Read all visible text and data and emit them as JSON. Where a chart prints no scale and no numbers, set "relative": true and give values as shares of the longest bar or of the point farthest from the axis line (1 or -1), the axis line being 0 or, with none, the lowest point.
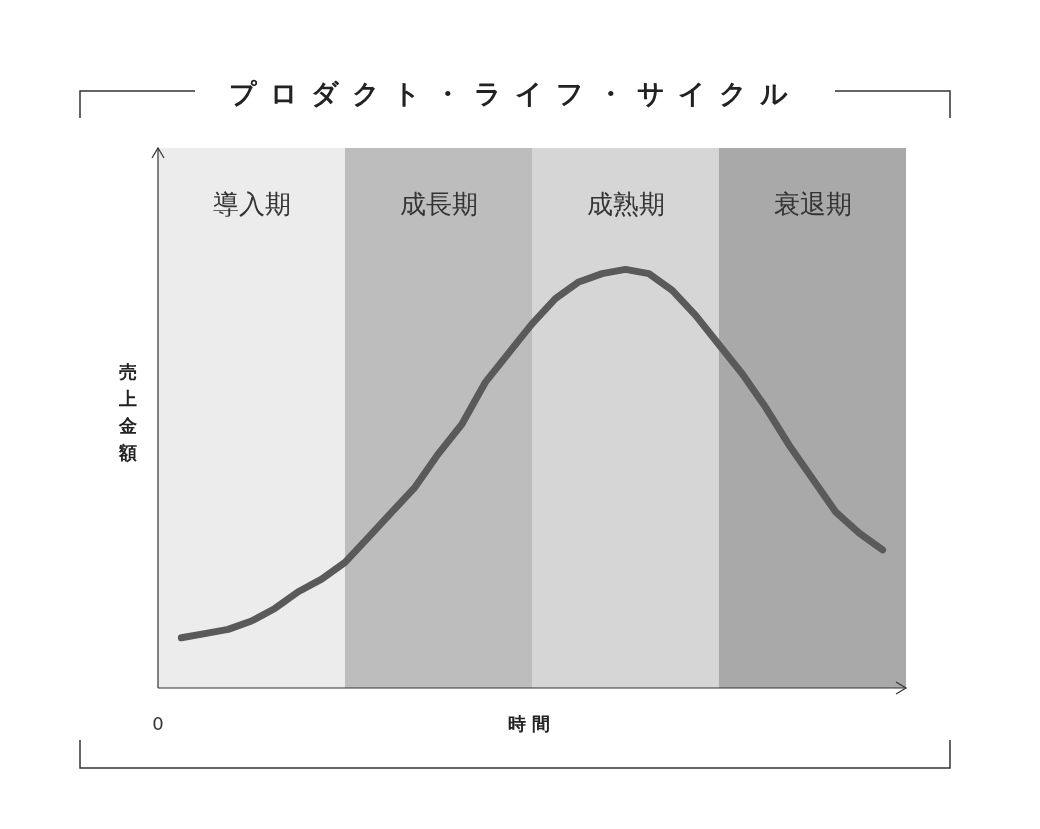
{
  "chart_data": {
    "type": "line",
    "title": "プロダクト・ライフ・サイクル",
    "xlabel": "時間",
    "ylabel": "売上金額",
    "relative": true,
    "annotations": [
      "導入期",
      "成長期",
      "成熟期",
      "衰退期",
      "0"
    ],
    "categories": [
      null,
      null,
      null,
      null,
      null,
      null,
      null,
      null,
      null,
      null,
      null,
      null,
      null,
      null,
      null,
      null,
      null,
      null,
      null,
      null,
      null,
      null,
      null,
      null,
      null,
      null,
      null,
      null,
      null,
      null,
      null,
      null,
      null
    ],
    "series": [
      {
        "color": "#5a5a5a",
        "values": [
          null,
          0.12,
          0.13,
          0.14,
          0.16,
          0.19,
          0.23,
          0.26,
          0.3,
          0.36,
          0.42,
          0.48,
          0.56,
          0.63,
          0.73,
          0.8,
          0.87,
          0.93,
          0.97,
          0.99,
          1.0,
          0.99,
          0.95,
          0.89,
          0.82,
          0.75,
          0.67,
          0.58,
          0.5,
          0.42,
          0.37,
          0.33,
          null
        ]
      }
    ],
    "marker": "none",
    "line_style": "solid"
  }
}
